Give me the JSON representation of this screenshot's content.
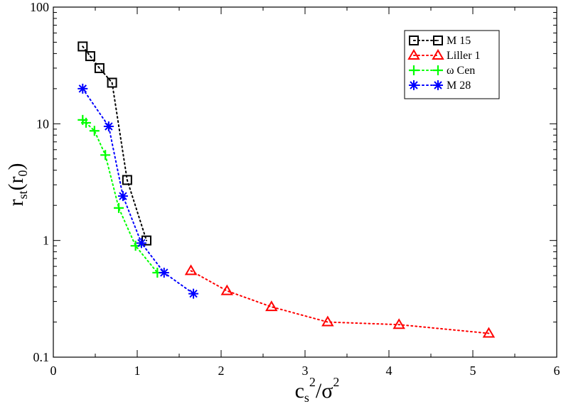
{
  "chart_data": {
    "type": "scatter",
    "title": "",
    "xlabel": {
      "base": "c",
      "sub": "s",
      "sup": "2",
      "slash": "/",
      "denom": "σ",
      "denom_sup": "2"
    },
    "ylabel": {
      "base": "r",
      "sub": "st",
      "paren_open": "(",
      "inner": "r",
      "inner_sub": "0",
      "paren_close": ")"
    },
    "xlim": [
      0,
      6
    ],
    "ylim": [
      0.1,
      100
    ],
    "yscale": "log",
    "x_ticks": [
      0,
      1,
      2,
      3,
      4,
      5,
      6
    ],
    "x_tick_labels": [
      "0",
      "1",
      "2",
      "3",
      "4",
      "5",
      "6"
    ],
    "y_ticks": [
      0.1,
      1,
      10,
      100
    ],
    "y_tick_labels": [
      "0.1",
      "1",
      "10",
      "100"
    ],
    "grid": false,
    "legend_position": "top-right",
    "series": [
      {
        "name": "M 15",
        "color": "#000000",
        "marker": "square",
        "x": [
          0.35,
          0.44,
          0.55,
          0.7,
          0.88,
          1.11
        ],
        "y": [
          46,
          38,
          30,
          22.5,
          3.3,
          1.0
        ]
      },
      {
        "name": "Liller 1",
        "color": "#ff0000",
        "marker": "triangle",
        "x": [
          1.64,
          2.07,
          2.6,
          3.27,
          4.12,
          5.19
        ],
        "y": [
          0.55,
          0.37,
          0.27,
          0.2,
          0.19,
          0.16
        ]
      },
      {
        "name": "ω Cen",
        "color": "#00ff00",
        "marker": "plus",
        "x": [
          0.35,
          0.39,
          0.49,
          0.62,
          0.78,
          0.98,
          1.24
        ],
        "y": [
          10.8,
          10.2,
          8.7,
          5.4,
          1.9,
          0.9,
          0.53
        ]
      },
      {
        "name": "M 28",
        "color": "#0000ff",
        "marker": "asterisk",
        "x": [
          0.35,
          0.66,
          0.83,
          1.05,
          1.32,
          1.67
        ],
        "y": [
          20,
          9.5,
          2.4,
          0.95,
          0.53,
          0.35
        ]
      }
    ]
  }
}
